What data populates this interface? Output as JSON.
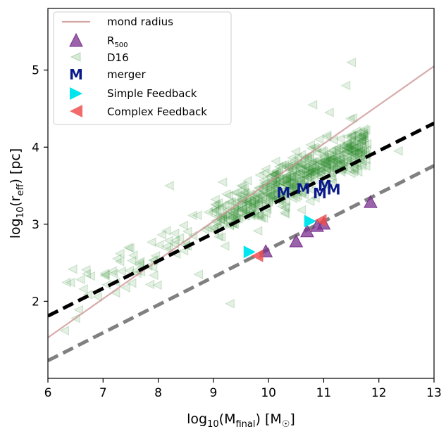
{
  "chart_data": {
    "type": "scatter",
    "xlabel": {
      "base": "log",
      "sub": "10",
      "mid": "(M",
      "sub2": "final",
      "end": ") [M",
      "sun": "☉",
      "close": "]"
    },
    "ylabel": {
      "base": "log",
      "sub": "10",
      "mid": "(r",
      "sub2": "eff",
      "end": ") [pc]"
    },
    "xlim": [
      6,
      13
    ],
    "ylim": [
      1.0,
      5.8
    ],
    "xticks": [
      "6",
      "7",
      "8",
      "9",
      "10",
      "11",
      "12",
      "13"
    ],
    "yticks": [
      "2",
      "3",
      "4",
      "5"
    ],
    "legend_position": "top-left",
    "legend": [
      {
        "key": "mond",
        "label": "mond radius"
      },
      {
        "key": "r500",
        "label": "R",
        "sub": "500"
      },
      {
        "key": "d16",
        "label": "D16"
      },
      {
        "key": "merger",
        "label": "merger",
        "marker": "M"
      },
      {
        "key": "simple",
        "label": "Simple Feedback"
      },
      {
        "key": "complex",
        "label": "Complex Feedback"
      }
    ],
    "colors": {
      "mond": "#c9908f",
      "r500": "#7a2f8e",
      "d16": "#2e8b2e",
      "merger": "#0b1a8a",
      "simple": "#00e5ee",
      "complex": "#f05050",
      "black_line": "#000000",
      "gray_line": "#808080"
    },
    "lines": [
      {
        "key": "mond",
        "points": [
          [
            6,
            1.53
          ],
          [
            13,
            5.05
          ]
        ]
      },
      {
        "key": "black_line",
        "points": [
          [
            6,
            1.81
          ],
          [
            13,
            4.31
          ]
        ]
      },
      {
        "key": "gray_line",
        "points": [
          [
            6,
            1.23
          ],
          [
            13,
            3.76
          ]
        ]
      }
    ],
    "r500": [
      [
        9.95,
        2.64
      ],
      [
        10.5,
        2.77
      ],
      [
        10.7,
        2.9
      ],
      [
        10.88,
        2.97
      ],
      [
        11.0,
        3.0
      ],
      [
        11.85,
        3.28
      ]
    ],
    "simple": [
      [
        9.65,
        2.64
      ],
      [
        10.75,
        3.04
      ]
    ],
    "complex": [
      [
        9.8,
        2.59
      ],
      [
        10.95,
        3.05
      ]
    ],
    "merger": [
      [
        10.27,
        3.42
      ],
      [
        10.63,
        3.47
      ],
      [
        10.93,
        3.41
      ],
      [
        11.02,
        3.51
      ],
      [
        11.18,
        3.46
      ]
    ],
    "d16_regions": [
      {
        "n": 520,
        "x": [
          9.0,
          11.8
        ],
        "slope": 0.36,
        "intercept_at_9": 3.05,
        "spread": 0.28
      },
      {
        "n": 70,
        "x": [
          6.3,
          9.0
        ],
        "slope": 0.36,
        "intercept_at_9": 3.0,
        "spread": 0.3
      }
    ],
    "d16_extra": [
      [
        11.5,
        5.1
      ],
      [
        11.4,
        4.8
      ],
      [
        10.8,
        4.55
      ],
      [
        11.1,
        4.45
      ],
      [
        9.3,
        1.97
      ],
      [
        6.3,
        1.62
      ],
      [
        6.5,
        1.78
      ],
      [
        12.35,
        3.95
      ],
      [
        8.2,
        3.5
      ]
    ]
  }
}
